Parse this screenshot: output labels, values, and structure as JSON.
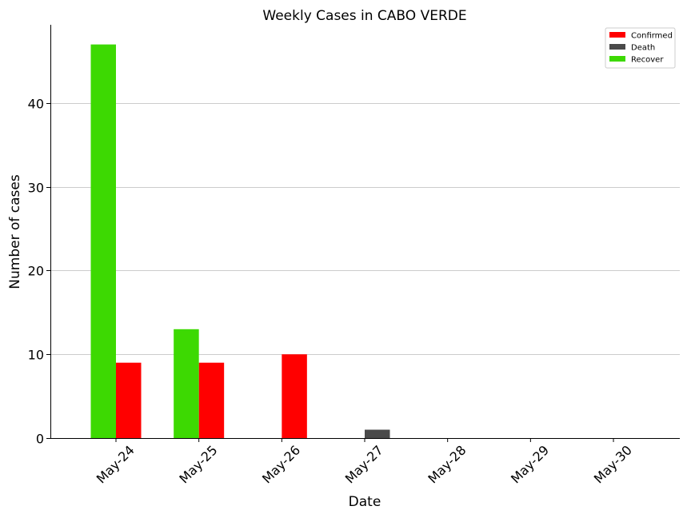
{
  "chart_data": {
    "type": "bar",
    "title": "Weekly Cases in CABO VERDE",
    "xlabel": "Date",
    "ylabel": "Number of cases",
    "categories": [
      "May-24",
      "May-25",
      "May-26",
      "May-27",
      "May-28",
      "May-29",
      "May-30"
    ],
    "series": [
      {
        "name": "Confirmed",
        "color": "#ff0000",
        "values": [
          9,
          9,
          10,
          0,
          0,
          0,
          0
        ]
      },
      {
        "name": "Death",
        "color": "#4a4a4a",
        "values": [
          0,
          0,
          0,
          1,
          0,
          0,
          0
        ]
      },
      {
        "name": "Recover",
        "color": "#3dd902",
        "values": [
          47,
          13,
          0,
          0,
          0,
          0,
          0
        ]
      }
    ],
    "ylim": [
      0,
      49.35
    ],
    "yticks": [
      0,
      10,
      20,
      30,
      40
    ],
    "grid": "y",
    "legend": "top-right"
  }
}
